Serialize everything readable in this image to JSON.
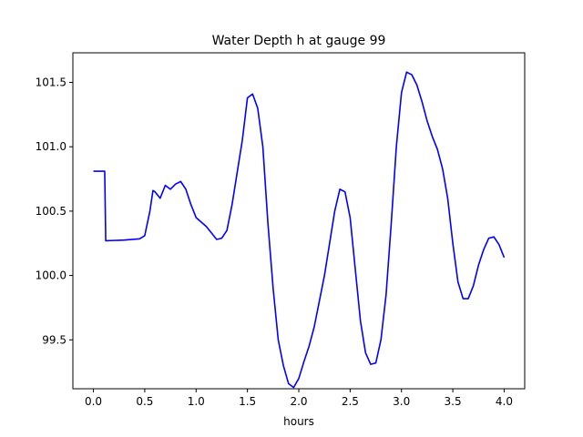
{
  "chart_data": {
    "type": "line",
    "title": "Water Depth h at gauge 99",
    "xlabel": "hours",
    "ylabel": "",
    "xlim": [
      -0.2,
      4.2
    ],
    "ylim": [
      99.12,
      101.73
    ],
    "xticks": [
      0.0,
      0.5,
      1.0,
      1.5,
      2.0,
      2.5,
      3.0,
      3.5,
      4.0
    ],
    "xtick_labels": [
      "0.0",
      "0.5",
      "1.0",
      "1.5",
      "2.0",
      "2.5",
      "3.0",
      "3.5",
      "4.0"
    ],
    "yticks": [
      99.5,
      100.0,
      100.5,
      101.0,
      101.5
    ],
    "ytick_labels": [
      "99.5",
      "100.0",
      "100.5",
      "101.0",
      "101.5"
    ],
    "grid": false,
    "series": [
      {
        "color": "#0000ff",
        "x": [
          0.0,
          0.11,
          0.12,
          0.3,
          0.45,
          0.5,
          0.55,
          0.58,
          0.6,
          0.65,
          0.7,
          0.75,
          0.8,
          0.85,
          0.9,
          0.95,
          1.0,
          1.1,
          1.15,
          1.2,
          1.25,
          1.3,
          1.35,
          1.4,
          1.45,
          1.5,
          1.55,
          1.6,
          1.65,
          1.7,
          1.75,
          1.8,
          1.85,
          1.9,
          1.95,
          2.0,
          2.05,
          2.1,
          2.15,
          2.2,
          2.25,
          2.3,
          2.35,
          2.4,
          2.45,
          2.5,
          2.55,
          2.6,
          2.65,
          2.7,
          2.75,
          2.8,
          2.85,
          2.9,
          2.95,
          3.0,
          3.05,
          3.1,
          3.15,
          3.2,
          3.25,
          3.3,
          3.35,
          3.4,
          3.45,
          3.5,
          3.55,
          3.6,
          3.65,
          3.7,
          3.75,
          3.8,
          3.85,
          3.9,
          3.95,
          4.0
        ],
        "y": [
          100.81,
          100.81,
          100.27,
          100.275,
          100.285,
          100.31,
          100.5,
          100.66,
          100.65,
          100.6,
          100.7,
          100.67,
          100.71,
          100.73,
          100.67,
          100.55,
          100.45,
          100.38,
          100.33,
          100.28,
          100.29,
          100.35,
          100.55,
          100.8,
          101.05,
          101.38,
          101.41,
          101.3,
          101.0,
          100.4,
          99.9,
          99.5,
          99.3,
          99.16,
          99.13,
          99.2,
          99.33,
          99.45,
          99.6,
          99.8,
          100.0,
          100.25,
          100.5,
          100.67,
          100.65,
          100.45,
          100.05,
          99.65,
          99.4,
          99.31,
          99.32,
          99.5,
          99.85,
          100.4,
          101.0,
          101.42,
          101.58,
          101.56,
          101.48,
          101.35,
          101.2,
          101.08,
          100.98,
          100.83,
          100.6,
          100.25,
          99.95,
          99.82,
          99.82,
          99.92,
          100.08,
          100.2,
          100.29,
          100.3,
          100.24,
          100.14
        ]
      }
    ]
  }
}
